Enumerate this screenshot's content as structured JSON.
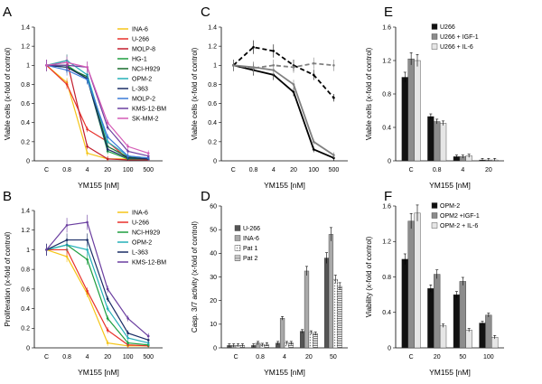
{
  "chart_data": [
    {
      "panel": "A",
      "type": "line",
      "categories": [
        "C",
        "0.8",
        "4",
        "20",
        "100",
        "500"
      ],
      "xlabel": "YM155 [nM]",
      "ylabel": "Viable cells (x-fold of control)",
      "ylim": [
        0,
        1.4
      ],
      "yticks": [
        "0",
        "0.2",
        "0.4",
        "0.6",
        "0.8",
        "1",
        "1.2",
        "1.4"
      ],
      "legend_position": "top-right",
      "series": [
        {
          "name": "INA-6",
          "color": "#f5c518",
          "values": [
            1.0,
            0.82,
            0.08,
            0.02,
            0.02,
            0.02
          ]
        },
        {
          "name": "U-266",
          "color": "#e8312a",
          "values": [
            1.0,
            0.8,
            0.33,
            0.2,
            0.02,
            0.02
          ]
        },
        {
          "name": "MOLP-8",
          "color": "#c21e2e",
          "values": [
            1.0,
            1.05,
            0.15,
            0.02,
            0.01,
            0.01
          ]
        },
        {
          "name": "HG-1",
          "color": "#1d9e3f",
          "values": [
            1.0,
            1.0,
            0.86,
            0.1,
            0.02,
            0.02
          ]
        },
        {
          "name": "NCI-H929",
          "color": "#176b2a",
          "values": [
            1.0,
            0.98,
            0.88,
            0.15,
            0.04,
            0.02
          ]
        },
        {
          "name": "OPM-2",
          "color": "#24b0b8",
          "values": [
            1.0,
            1.05,
            0.9,
            0.2,
            0.05,
            0.03
          ]
        },
        {
          "name": "L-363",
          "color": "#1b2e66",
          "values": [
            1.0,
            0.98,
            0.86,
            0.12,
            0.03,
            0.02
          ]
        },
        {
          "name": "MOLP-2",
          "color": "#3a7ad9",
          "values": [
            1.0,
            0.95,
            0.85,
            0.25,
            0.05,
            0.03
          ]
        },
        {
          "name": "KMS-12-BM",
          "color": "#6b3fa0",
          "values": [
            1.0,
            1.0,
            0.98,
            0.35,
            0.1,
            0.05
          ]
        },
        {
          "name": "SK-MM-2",
          "color": "#d45ab5",
          "values": [
            1.0,
            1.03,
            0.98,
            0.4,
            0.15,
            0.08
          ]
        }
      ]
    },
    {
      "panel": "B",
      "type": "line",
      "categories": [
        "C",
        "0.8",
        "4",
        "20",
        "100",
        "500"
      ],
      "xlabel": "YM155 [nM]",
      "ylabel": "Proliferation (x-fold of control)",
      "ylim": [
        0,
        1.4
      ],
      "yticks": [
        "0",
        "0.2",
        "0.4",
        "0.6",
        "0.8",
        "1",
        "1.2",
        "1.4"
      ],
      "legend_position": "top-right",
      "series": [
        {
          "name": "INA-6",
          "color": "#f5c518",
          "values": [
            1.0,
            0.93,
            0.55,
            0.05,
            0.02,
            0.02
          ]
        },
        {
          "name": "U-266",
          "color": "#e8312a",
          "values": [
            1.0,
            1.0,
            0.58,
            0.18,
            0.03,
            0.02
          ]
        },
        {
          "name": "NCI-H929",
          "color": "#1d9e3f",
          "values": [
            1.0,
            1.05,
            0.9,
            0.3,
            0.05,
            0.03
          ]
        },
        {
          "name": "OPM-2",
          "color": "#24b0b8",
          "values": [
            1.0,
            1.05,
            1.0,
            0.4,
            0.1,
            0.05
          ]
        },
        {
          "name": "L-363",
          "color": "#1b2e66",
          "values": [
            1.0,
            1.1,
            1.1,
            0.5,
            0.15,
            0.08
          ]
        },
        {
          "name": "KMS-12-BM",
          "color": "#6b3fa0",
          "values": [
            1.0,
            1.25,
            1.28,
            0.6,
            0.3,
            0.12
          ]
        }
      ]
    },
    {
      "panel": "C",
      "type": "line",
      "categories": [
        "C",
        "0.8",
        "4",
        "20",
        "100",
        "500"
      ],
      "xlabel": "YM155 [nM]",
      "ylabel": "Viable cells (x-fold of control)",
      "ylim": [
        0,
        1.4
      ],
      "yticks": [
        "0",
        "0.2",
        "0.4",
        "0.6",
        "0.8",
        "1",
        "1.2",
        "1.4"
      ],
      "series": [
        {
          "name": "solid-dark",
          "color": "#000000",
          "dash": false,
          "values": [
            1.0,
            0.95,
            0.9,
            0.72,
            0.12,
            0.03
          ]
        },
        {
          "name": "solid-grey",
          "color": "#808080",
          "dash": false,
          "values": [
            1.0,
            0.98,
            0.95,
            0.8,
            0.2,
            0.06
          ]
        },
        {
          "name": "dashed-dark",
          "color": "#000000",
          "dash": true,
          "values": [
            1.0,
            1.19,
            1.15,
            1.0,
            0.9,
            0.66
          ]
        },
        {
          "name": "dashed-grey",
          "color": "#808080",
          "dash": true,
          "values": [
            1.0,
            0.97,
            1.0,
            0.98,
            1.02,
            1.0
          ]
        }
      ]
    },
    {
      "panel": "D",
      "type": "bar",
      "categories": [
        "C",
        "0.8",
        "4",
        "20",
        "50"
      ],
      "xlabel": "YM155 [nM]",
      "ylabel": "Casp. 3/7 activity (x-fold of control)",
      "ylim": [
        0,
        60
      ],
      "yticks": [
        "0",
        "10",
        "20",
        "30",
        "40",
        "50",
        "60"
      ],
      "legend_position": "top-left",
      "series": [
        {
          "name": "U-266",
          "color": "#555555",
          "pattern": "solid",
          "values": [
            1,
            1,
            2,
            7,
            38
          ]
        },
        {
          "name": "INA-6",
          "color": "#a9a9a9",
          "pattern": "solid",
          "values": [
            1,
            2,
            12.5,
            32.5,
            48
          ]
        },
        {
          "name": "Pat 1",
          "color": "#cfcfcf",
          "pattern": "dots",
          "values": [
            1,
            1.2,
            2,
            6.5,
            29
          ]
        },
        {
          "name": "Pat 2",
          "color": "#ffffff",
          "pattern": "hlines",
          "values": [
            1,
            1.5,
            2,
            6,
            26
          ]
        }
      ]
    },
    {
      "panel": "E",
      "type": "bar",
      "categories": [
        "C",
        "0.8",
        "4",
        "20"
      ],
      "xlabel": "YM155 [nM]",
      "ylabel": "Viable cells (x-fold of control)",
      "ylim": [
        0,
        1.6
      ],
      "yticks": [
        "0",
        "0.4",
        "0.8",
        "1.2",
        "1.6"
      ],
      "legend_position": "top-right",
      "series": [
        {
          "name": "U266",
          "color": "#111111",
          "values": [
            1.0,
            0.53,
            0.05,
            0.01
          ]
        },
        {
          "name": "U266 + IGF-1",
          "color": "#8c8c8c",
          "values": [
            1.22,
            0.47,
            0.05,
            0.01
          ]
        },
        {
          "name": "U266 + IL-6",
          "color": "#e6e6e6",
          "values": [
            1.2,
            0.45,
            0.06,
            0.01
          ]
        }
      ]
    },
    {
      "panel": "F",
      "type": "bar",
      "categories": [
        "C",
        "20",
        "50",
        "100"
      ],
      "xlabel": "YM155 [nM]",
      "ylabel": "Viability (x-fold of control)",
      "ylim": [
        0,
        1.6
      ],
      "yticks": [
        "0",
        "0.4",
        "0.8",
        "1.2",
        "1.6"
      ],
      "legend_position": "top-right",
      "series": [
        {
          "name": "OPM-2",
          "color": "#111111",
          "values": [
            1.0,
            0.67,
            0.6,
            0.28
          ]
        },
        {
          "name": "OPM2 +IGF-1",
          "color": "#8c8c8c",
          "values": [
            1.43,
            0.83,
            0.75,
            0.37
          ]
        },
        {
          "name": "OPM-2 + IL-6",
          "color": "#e6e6e6",
          "values": [
            1.52,
            0.25,
            0.2,
            0.12
          ]
        }
      ]
    }
  ]
}
